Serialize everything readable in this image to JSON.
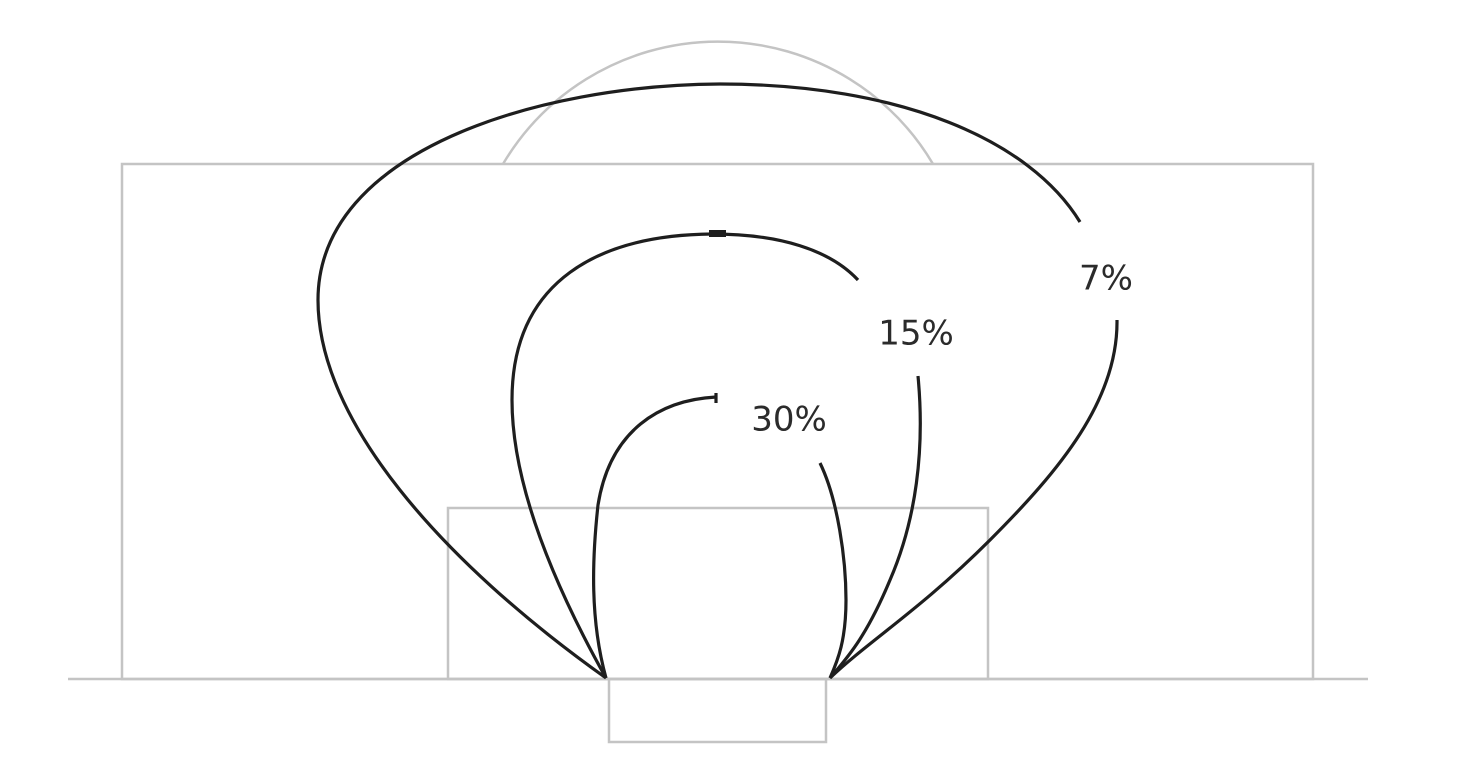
{
  "diagram": {
    "zones": [
      {
        "id": "inner",
        "label": "30%"
      },
      {
        "id": "middle",
        "label": "15%"
      },
      {
        "id": "outer",
        "label": "7%"
      }
    ],
    "colors": {
      "pitch_lines": "#c4c4c4",
      "contours": "#1e1e1e",
      "labels": "#2b2b2b",
      "background": "#ffffff"
    }
  }
}
